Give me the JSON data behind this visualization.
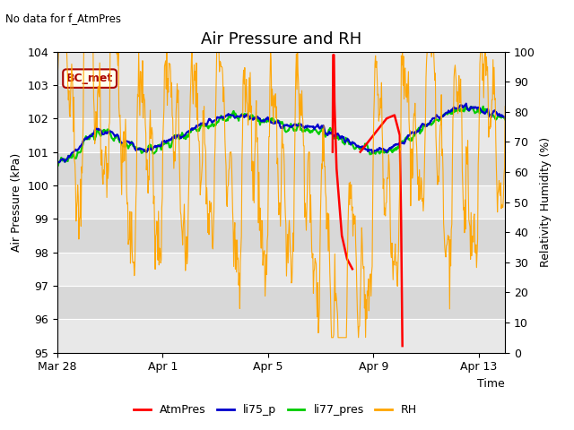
{
  "title": "Air Pressure and RH",
  "subtitle": "No data for f_AtmPres",
  "xlabel": "Time",
  "ylabel_left": "Air Pressure (kPa)",
  "ylabel_right": "Relativity Humidity (%)",
  "ylim_left": [
    95.0,
    104.0
  ],
  "ylim_right": [
    0,
    100
  ],
  "yticks_left": [
    95.0,
    96.0,
    97.0,
    98.0,
    99.0,
    100.0,
    101.0,
    102.0,
    103.0,
    104.0
  ],
  "yticks_right": [
    0,
    10,
    20,
    30,
    40,
    50,
    60,
    70,
    80,
    90,
    100
  ],
  "bg_color": "#ffffff",
  "plot_bg_color": "#e8e8e8",
  "legend_labels": [
    "AtmPres",
    "li75_p",
    "li77_pres",
    "RH"
  ],
  "legend_colors": [
    "#ff0000",
    "#0000cc",
    "#00cc00",
    "#ffa500"
  ],
  "annotation_box": "BC_met",
  "annotation_color": "#aa0000",
  "x_tick_labels": [
    "Mar 28",
    "Apr 1",
    "Apr 5",
    "Apr 9",
    "Apr 13"
  ],
  "x_tick_pos": [
    0,
    4,
    8,
    12,
    16
  ],
  "title_fontsize": 13,
  "label_fontsize": 9,
  "tick_fontsize": 9,
  "n_days": 17,
  "band_colors": [
    "#d8d8d8",
    "#e8e8e8"
  ],
  "atm_seg1_t": [
    10.45,
    10.47,
    10.5,
    10.52,
    10.6,
    10.8,
    11.0,
    11.2
  ],
  "atm_seg1_v": [
    101.0,
    103.9,
    103.9,
    102.5,
    100.5,
    98.5,
    97.8,
    97.5
  ],
  "atm_seg2_t": [
    11.5,
    12.0,
    12.5,
    12.8,
    13.0,
    13.05,
    13.1
  ],
  "atm_seg2_v": [
    101.0,
    101.5,
    102.0,
    102.1,
    101.5,
    99.0,
    95.2
  ]
}
